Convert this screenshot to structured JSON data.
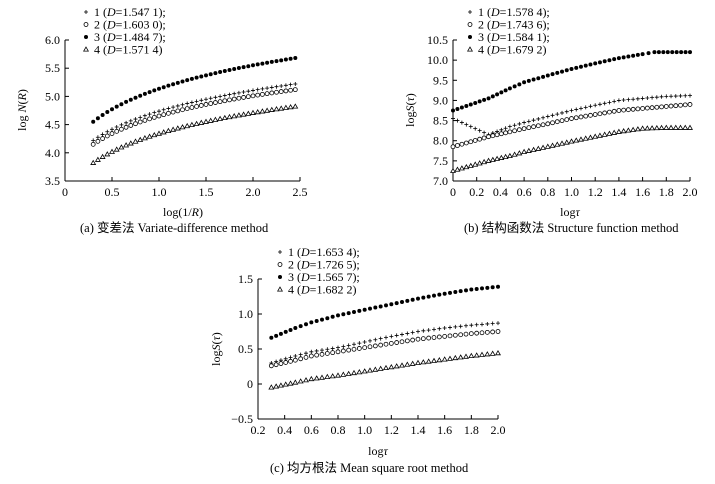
{
  "chart_data": [
    {
      "id": "a",
      "type": "scatter",
      "caption": "(a) 变差法 Variate-difference method",
      "xlabel_main": "log(1/",
      "xlabel_var": "R",
      "xlabel_end": ")",
      "ylabel_main": "log ",
      "ylabel_var": "N",
      "ylabel_open": "(",
      "ylabel_arg": "R",
      "ylabel_close": ")",
      "xlim": [
        0,
        2.5
      ],
      "ylim": [
        3.5,
        6.0
      ],
      "xticks": [
        "0",
        "0.5",
        "1.0",
        "1.5",
        "2.0",
        "2.5"
      ],
      "yticks": [
        "3.5",
        "4.0",
        "4.5",
        "5.0",
        "5.5",
        "6.0"
      ],
      "series": [
        {
          "name": "1",
          "marker": "plus",
          "d_label": "D",
          "d_value": "=1.547 1);",
          "x_start": 0.3,
          "x_end": 2.45,
          "y_start": 4.22,
          "y_end": 5.22
        },
        {
          "name": "2",
          "marker": "circle",
          "d_label": "D",
          "d_value": "=1.603 0);",
          "x_start": 0.3,
          "x_end": 2.45,
          "y_start": 4.15,
          "y_end": 5.12
        },
        {
          "name": "3",
          "marker": "dot",
          "d_label": "D",
          "d_value": "=1.484 7);",
          "x_start": 0.3,
          "x_end": 2.45,
          "y_start": 4.55,
          "y_end": 5.68
        },
        {
          "name": "4",
          "marker": "triangle",
          "d_label": "D",
          "d_value": "=1.571 4)",
          "x_start": 0.3,
          "x_end": 2.45,
          "y_start": 3.82,
          "y_end": 4.82
        }
      ]
    },
    {
      "id": "b",
      "type": "scatter",
      "caption": "(b) 结构函数法 Structure function method",
      "xlabel_main": "log",
      "xlabel_var": "τ",
      "xlabel_end": "",
      "ylabel_main": "log",
      "ylabel_var": "S",
      "ylabel_open": "(",
      "ylabel_arg": "τ",
      "ylabel_close": ")",
      "xlim": [
        0,
        2.0
      ],
      "ylim": [
        7.0,
        10.5
      ],
      "xticks": [
        "0",
        "0.2",
        "0.4",
        "0.6",
        "0.8",
        "1.0",
        "1.2",
        "1.4",
        "1.6",
        "1.8",
        "2.0"
      ],
      "yticks": [
        "7.0",
        "7.5",
        "8.0",
        "8.5",
        "9.0",
        "9.5",
        "10.0",
        "10.5"
      ],
      "series": [
        {
          "name": "1",
          "marker": "plus",
          "d_label": "D",
          "d_value": "=1.578 4);",
          "points": [
            [
              0,
              8.55
            ],
            [
              0.3,
              8.15
            ],
            [
              0.48,
              8.35
            ],
            [
              0.6,
              8.45
            ],
            [
              0.8,
              8.6
            ],
            [
              1.0,
              8.75
            ],
            [
              1.2,
              8.88
            ],
            [
              1.4,
              9.0
            ],
            [
              1.6,
              9.05
            ],
            [
              1.8,
              9.1
            ],
            [
              2.0,
              9.12
            ]
          ]
        },
        {
          "name": "2",
          "marker": "circle",
          "d_label": "D",
          "d_value": "=1.743 6);",
          "points": [
            [
              0,
              7.85
            ],
            [
              0.3,
              8.1
            ],
            [
              0.48,
              8.22
            ],
            [
              0.6,
              8.3
            ],
            [
              0.8,
              8.42
            ],
            [
              1.0,
              8.55
            ],
            [
              1.2,
              8.65
            ],
            [
              1.4,
              8.75
            ],
            [
              1.6,
              8.8
            ],
            [
              1.8,
              8.85
            ],
            [
              2.0,
              8.9
            ]
          ]
        },
        {
          "name": "3",
          "marker": "dot",
          "d_label": "D",
          "d_value": "=1.584 1);",
          "points": [
            [
              0,
              8.75
            ],
            [
              0.3,
              9.05
            ],
            [
              0.48,
              9.3
            ],
            [
              0.6,
              9.45
            ],
            [
              0.8,
              9.62
            ],
            [
              1.0,
              9.78
            ],
            [
              1.2,
              9.92
            ],
            [
              1.4,
              10.05
            ],
            [
              1.6,
              10.15
            ],
            [
              1.7,
              10.2
            ],
            [
              2.0,
              10.2
            ]
          ]
        },
        {
          "name": "4",
          "marker": "triangle",
          "d_label": "D",
          "d_value": "=1.679 2)",
          "points": [
            [
              0,
              7.25
            ],
            [
              0.3,
              7.5
            ],
            [
              0.48,
              7.62
            ],
            [
              0.6,
              7.72
            ],
            [
              0.8,
              7.85
            ],
            [
              1.0,
              7.98
            ],
            [
              1.2,
              8.1
            ],
            [
              1.4,
              8.22
            ],
            [
              1.6,
              8.3
            ],
            [
              1.8,
              8.32
            ],
            [
              2.0,
              8.32
            ]
          ]
        }
      ]
    },
    {
      "id": "c",
      "type": "scatter",
      "caption": "(c) 均方根法 Mean square root method",
      "xlabel_main": "log",
      "xlabel_var": "τ",
      "xlabel_end": "",
      "ylabel_main": "log",
      "ylabel_var": "S",
      "ylabel_open": "(",
      "ylabel_arg": "τ",
      "ylabel_close": ")",
      "xlim": [
        0.2,
        2.0
      ],
      "ylim": [
        -0.5,
        1.5
      ],
      "xticks": [
        "0.2",
        "0.4",
        "0.6",
        "0.8",
        "1.0",
        "1.2",
        "1.4",
        "1.6",
        "1.8",
        "2.0"
      ],
      "yticks": [
        "−0.5",
        "0",
        "0.5",
        "1.0",
        "1.5"
      ],
      "series": [
        {
          "name": "1",
          "marker": "plus",
          "d_label": "D",
          "d_value": "=1.653 4);",
          "points": [
            [
              0.3,
              0.3
            ],
            [
              0.48,
              0.4
            ],
            [
              0.6,
              0.46
            ],
            [
              0.8,
              0.52
            ],
            [
              1.0,
              0.6
            ],
            [
              1.2,
              0.68
            ],
            [
              1.4,
              0.75
            ],
            [
              1.6,
              0.8
            ],
            [
              1.8,
              0.84
            ],
            [
              2.0,
              0.87
            ]
          ]
        },
        {
          "name": "2",
          "marker": "circle",
          "d_label": "D",
          "d_value": "=1.726 5);",
          "points": [
            [
              0.3,
              0.26
            ],
            [
              0.48,
              0.34
            ],
            [
              0.6,
              0.4
            ],
            [
              0.8,
              0.46
            ],
            [
              1.0,
              0.52
            ],
            [
              1.2,
              0.58
            ],
            [
              1.4,
              0.64
            ],
            [
              1.6,
              0.68
            ],
            [
              1.8,
              0.72
            ],
            [
              2.0,
              0.75
            ]
          ]
        },
        {
          "name": "3",
          "marker": "dot",
          "d_label": "D",
          "d_value": "=1.565 7);",
          "points": [
            [
              0.3,
              0.66
            ],
            [
              0.48,
              0.8
            ],
            [
              0.6,
              0.88
            ],
            [
              0.8,
              0.98
            ],
            [
              1.0,
              1.06
            ],
            [
              1.2,
              1.14
            ],
            [
              1.4,
              1.22
            ],
            [
              1.6,
              1.29
            ],
            [
              1.8,
              1.35
            ],
            [
              2.0,
              1.39
            ]
          ]
        },
        {
          "name": "4",
          "marker": "triangle",
          "d_label": "D",
          "d_value": "=1.682 2)",
          "points": [
            [
              0.3,
              -0.05
            ],
            [
              0.48,
              0.02
            ],
            [
              0.6,
              0.07
            ],
            [
              0.8,
              0.12
            ],
            [
              1.0,
              0.18
            ],
            [
              1.2,
              0.24
            ],
            [
              1.4,
              0.3
            ],
            [
              1.6,
              0.35
            ],
            [
              1.8,
              0.4
            ],
            [
              2.0,
              0.44
            ]
          ]
        }
      ]
    }
  ]
}
